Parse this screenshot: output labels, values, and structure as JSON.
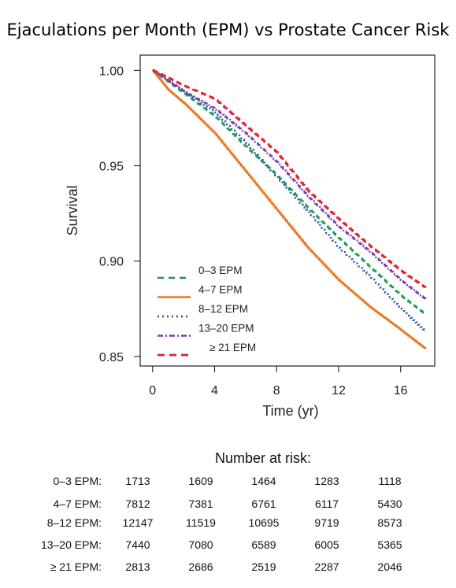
{
  "title": "Ejaculations per Month (EPM) vs Prostate Cancer Risk",
  "colors": {
    "0-3": "#1a9850",
    "4-7": "#e87722",
    "8-12": "#2b5aa8",
    "13-20": "#7b3fa8",
    "21+": "#e0202f"
  },
  "chart_data": {
    "type": "line",
    "xlabel": "Time (yr)",
    "ylabel": "Survival",
    "xlim": [
      -0.8,
      18.2
    ],
    "ylim": [
      0.845,
      1.008
    ],
    "xticks": [
      0,
      4,
      8,
      12,
      16
    ],
    "yticks": [
      0.85,
      0.9,
      0.95,
      1.0
    ],
    "ytick_labels": [
      "0.85",
      "0.90",
      "0.95",
      "1.00"
    ],
    "legend_position": "bottom-left",
    "series": [
      {
        "name": "0–3 EPM",
        "color": "#1a9850",
        "dash": "8,6",
        "width": 2.2,
        "x": [
          0,
          2,
          4,
          6,
          8,
          10,
          12,
          14,
          16,
          17.6
        ],
        "y": [
          1.0,
          0.988,
          0.976,
          0.96,
          0.945,
          0.928,
          0.912,
          0.897,
          0.882,
          0.872
        ]
      },
      {
        "name": "4–7 EPM",
        "color": "#e87722",
        "dash": "",
        "width": 2.2,
        "x": [
          0,
          1,
          2,
          4,
          6,
          8,
          10,
          12,
          14,
          16,
          17.6
        ],
        "y": [
          1.0,
          0.99,
          0.983,
          0.967,
          0.947,
          0.927,
          0.907,
          0.89,
          0.876,
          0.864,
          0.854
        ]
      },
      {
        "name": "8–12 EPM",
        "color": "#2b5aa8",
        "dash": "2,4",
        "width": 2.4,
        "x": [
          0,
          2,
          4,
          6,
          8,
          10,
          12,
          14,
          16,
          17.6
        ],
        "y": [
          1.0,
          0.989,
          0.978,
          0.962,
          0.944,
          0.926,
          0.907,
          0.892,
          0.875,
          0.863
        ]
      },
      {
        "name": "13–20 EPM",
        "color": "#7b3fa8",
        "dash": "7,3,2,3",
        "width": 2.2,
        "x": [
          0,
          2,
          4,
          6,
          8,
          10,
          12,
          14,
          16,
          17.6
        ],
        "y": [
          1.0,
          0.989,
          0.98,
          0.967,
          0.952,
          0.934,
          0.918,
          0.905,
          0.89,
          0.88
        ]
      },
      {
        "name": "≥ 21 EPM",
        "color": "#e0202f",
        "dash": "9,6",
        "width": 2.4,
        "x": [
          0,
          2,
          4,
          6,
          8,
          10,
          12,
          14,
          16,
          17.6
        ],
        "y": [
          1.0,
          0.992,
          0.985,
          0.971,
          0.957,
          0.937,
          0.922,
          0.908,
          0.895,
          0.886
        ]
      }
    ]
  },
  "risk_table": {
    "title": "Number at risk:",
    "rows": [
      {
        "label": "0–3 EPM:",
        "values": [
          "1713",
          "1609",
          "1464",
          "1283",
          "1118"
        ]
      },
      {
        "label": "4–7 EPM:",
        "values": [
          "7812",
          "7381",
          "6761",
          "6117",
          "5430"
        ]
      },
      {
        "label": "8–12 EPM:",
        "values": [
          "12147",
          "11519",
          "10695",
          "9719",
          "8573"
        ]
      },
      {
        "label": "13–20 EPM:",
        "values": [
          "7440",
          "7080",
          "6589",
          "6005",
          "5365"
        ]
      },
      {
        "label": "≥ 21 EPM:",
        "values": [
          "2813",
          "2686",
          "2519",
          "2287",
          "2046"
        ]
      }
    ]
  }
}
